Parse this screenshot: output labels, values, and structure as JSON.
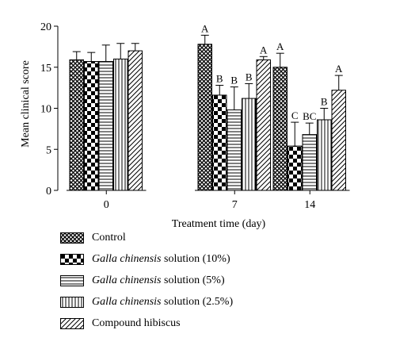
{
  "chart_data": {
    "type": "bar",
    "xlabel": "Treatment time (day)",
    "ylabel": "Mean clinical score",
    "ylim": [
      0,
      20
    ],
    "yticks": [
      "0",
      "5",
      "10",
      "15",
      "20"
    ],
    "categories": [
      "0",
      "7",
      "14"
    ],
    "series": [
      {
        "name": "Control",
        "pattern": "crosshatch",
        "values": [
          15.9,
          17.8,
          15.0
        ],
        "errors": [
          1.0,
          1.1,
          1.7
        ],
        "letters": [
          "",
          "A",
          "A"
        ]
      },
      {
        "name": "Galla chinensis solution (10%)",
        "pattern": "checker",
        "values": [
          15.7,
          11.6,
          5.4
        ],
        "errors": [
          1.1,
          1.2,
          2.9
        ],
        "letters": [
          "",
          "B",
          "C"
        ]
      },
      {
        "name": "Galla chinensis solution (5%)",
        "pattern": "horizontal",
        "values": [
          15.7,
          9.8,
          6.8
        ],
        "errors": [
          2.0,
          2.8,
          1.4
        ],
        "letters": [
          "",
          "B",
          "BC"
        ]
      },
      {
        "name": "Galla chinensis solution (2.5%)",
        "pattern": "vertical",
        "values": [
          16.0,
          11.2,
          8.6
        ],
        "errors": [
          1.9,
          1.8,
          1.4
        ],
        "letters": [
          "",
          "B",
          "B"
        ]
      },
      {
        "name": "Compound hibiscus",
        "pattern": "diagonal",
        "values": [
          17.0,
          15.9,
          12.2
        ],
        "errors": [
          0.9,
          0.4,
          1.8
        ],
        "letters": [
          "",
          "A",
          "A"
        ]
      }
    ],
    "legend": [
      {
        "italic": "",
        "rest": "Control",
        "pattern": "crosshatch"
      },
      {
        "italic": "Galla chinensis",
        "rest": " solution (10%)",
        "pattern": "checker"
      },
      {
        "italic": "Galla chinensis",
        "rest": " solution (5%)",
        "pattern": "horizontal"
      },
      {
        "italic": "Galla chinensis",
        "rest": " solution (2.5%)",
        "pattern": "vertical"
      },
      {
        "italic": "",
        "rest": "Compound hibiscus",
        "pattern": "diagonal"
      }
    ]
  }
}
